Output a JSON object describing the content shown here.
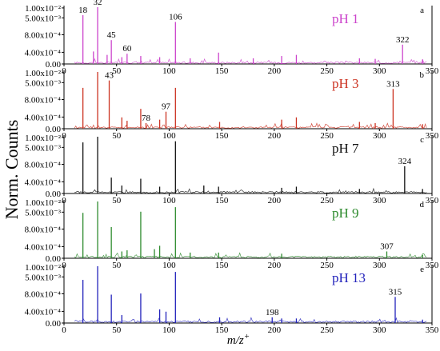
{
  "ylabel": "Norm. Counts",
  "xlabel_main": "m/z",
  "xlabel_sup": "+",
  "chart_data": {
    "type": "line",
    "layout": "stacked-panels",
    "xlabel": "m/z+",
    "ylabel": "Norm. Counts",
    "xlim": [
      0,
      350
    ],
    "x_ticks": [
      "0",
      "50",
      "100",
      "150",
      "200",
      "250",
      "300",
      "350"
    ],
    "y_ticks": [
      "0.00",
      "4.00x10⁻⁴",
      "8.00x10⁻⁴",
      "5.00x10⁻³",
      "1.00x10⁻²"
    ],
    "grid": false,
    "legend": "none",
    "panels": [
      {
        "letter": "a",
        "label": "pH 1",
        "color": "#cc44cc",
        "peaks": [
          {
            "x": 18,
            "rel": 0.86,
            "label": "18"
          },
          {
            "x": 32,
            "rel": 1.0,
            "label": "32"
          },
          {
            "x": 45,
            "rel": 0.42,
            "label": "45"
          },
          {
            "x": 60,
            "rel": 0.18,
            "label": "60"
          },
          {
            "x": 106,
            "rel": 0.74,
            "label": "106"
          },
          {
            "x": 322,
            "rel": 0.34,
            "label": "322"
          },
          {
            "x": 28,
            "rel": 0.22
          },
          {
            "x": 41,
            "rel": 0.16
          },
          {
            "x": 55,
            "rel": 0.12
          },
          {
            "x": 73,
            "rel": 0.14
          },
          {
            "x": 91,
            "rel": 0.12
          },
          {
            "x": 120,
            "rel": 0.1
          },
          {
            "x": 147,
            "rel": 0.2
          },
          {
            "x": 180,
            "rel": 0.1
          },
          {
            "x": 207,
            "rel": 0.14
          },
          {
            "x": 221,
            "rel": 0.16
          },
          {
            "x": 281,
            "rel": 0.1
          },
          {
            "x": 296,
            "rel": 0.09
          },
          {
            "x": 341,
            "rel": 0.08
          }
        ]
      },
      {
        "letter": "b",
        "label": "pH 3",
        "color": "#cc3322",
        "peaks": [
          {
            "x": 43,
            "rel": 0.85,
            "label": "43"
          },
          {
            "x": 78,
            "rel": 0.1,
            "label": "78"
          },
          {
            "x": 97,
            "rel": 0.3,
            "label": "97"
          },
          {
            "x": 313,
            "rel": 0.7,
            "label": "313"
          },
          {
            "x": 18,
            "rel": 0.72
          },
          {
            "x": 32,
            "rel": 1.0
          },
          {
            "x": 55,
            "rel": 0.2
          },
          {
            "x": 60,
            "rel": 0.14
          },
          {
            "x": 73,
            "rel": 0.35
          },
          {
            "x": 91,
            "rel": 0.16
          },
          {
            "x": 106,
            "rel": 0.72
          },
          {
            "x": 148,
            "rel": 0.12
          },
          {
            "x": 207,
            "rel": 0.16
          },
          {
            "x": 221,
            "rel": 0.2
          },
          {
            "x": 281,
            "rel": 0.12
          },
          {
            "x": 296,
            "rel": 0.1
          },
          {
            "x": 341,
            "rel": 0.08
          }
        ]
      },
      {
        "letter": "c",
        "label": "pH 7",
        "color": "#111111",
        "peaks": [
          {
            "x": 324,
            "rel": 0.48,
            "label": "324"
          },
          {
            "x": 18,
            "rel": 0.9
          },
          {
            "x": 32,
            "rel": 1.0
          },
          {
            "x": 45,
            "rel": 0.28
          },
          {
            "x": 55,
            "rel": 0.14
          },
          {
            "x": 73,
            "rel": 0.26
          },
          {
            "x": 91,
            "rel": 0.12
          },
          {
            "x": 106,
            "rel": 0.92
          },
          {
            "x": 133,
            "rel": 0.14
          },
          {
            "x": 147,
            "rel": 0.12
          },
          {
            "x": 207,
            "rel": 0.1
          },
          {
            "x": 221,
            "rel": 0.12
          },
          {
            "x": 281,
            "rel": 0.08
          },
          {
            "x": 341,
            "rel": 0.08
          }
        ]
      },
      {
        "letter": "d",
        "label": "pH 9",
        "color": "#2e8b2e",
        "peaks": [
          {
            "x": 307,
            "rel": 0.12,
            "label": "307"
          },
          {
            "x": 18,
            "rel": 0.8
          },
          {
            "x": 32,
            "rel": 1.0
          },
          {
            "x": 45,
            "rel": 0.55
          },
          {
            "x": 55,
            "rel": 0.12
          },
          {
            "x": 60,
            "rel": 0.14
          },
          {
            "x": 73,
            "rel": 0.82
          },
          {
            "x": 86,
            "rel": 0.16
          },
          {
            "x": 91,
            "rel": 0.22
          },
          {
            "x": 106,
            "rel": 0.9
          },
          {
            "x": 120,
            "rel": 0.1
          },
          {
            "x": 147,
            "rel": 0.1
          },
          {
            "x": 207,
            "rel": 0.08
          },
          {
            "x": 341,
            "rel": 0.06
          }
        ]
      },
      {
        "letter": "e",
        "label": "pH 13",
        "color": "#2222bb",
        "peaks": [
          {
            "x": 198,
            "rel": 0.1,
            "label": "198"
          },
          {
            "x": 315,
            "rel": 0.46,
            "label": "315"
          },
          {
            "x": 18,
            "rel": 0.76
          },
          {
            "x": 32,
            "rel": 1.0
          },
          {
            "x": 45,
            "rel": 0.5
          },
          {
            "x": 55,
            "rel": 0.14
          },
          {
            "x": 73,
            "rel": 0.52
          },
          {
            "x": 91,
            "rel": 0.24
          },
          {
            "x": 97,
            "rel": 0.2
          },
          {
            "x": 106,
            "rel": 0.9
          },
          {
            "x": 148,
            "rel": 0.1
          },
          {
            "x": 207,
            "rel": 0.08
          },
          {
            "x": 221,
            "rel": 0.08
          },
          {
            "x": 341,
            "rel": 0.06
          }
        ]
      }
    ]
  }
}
